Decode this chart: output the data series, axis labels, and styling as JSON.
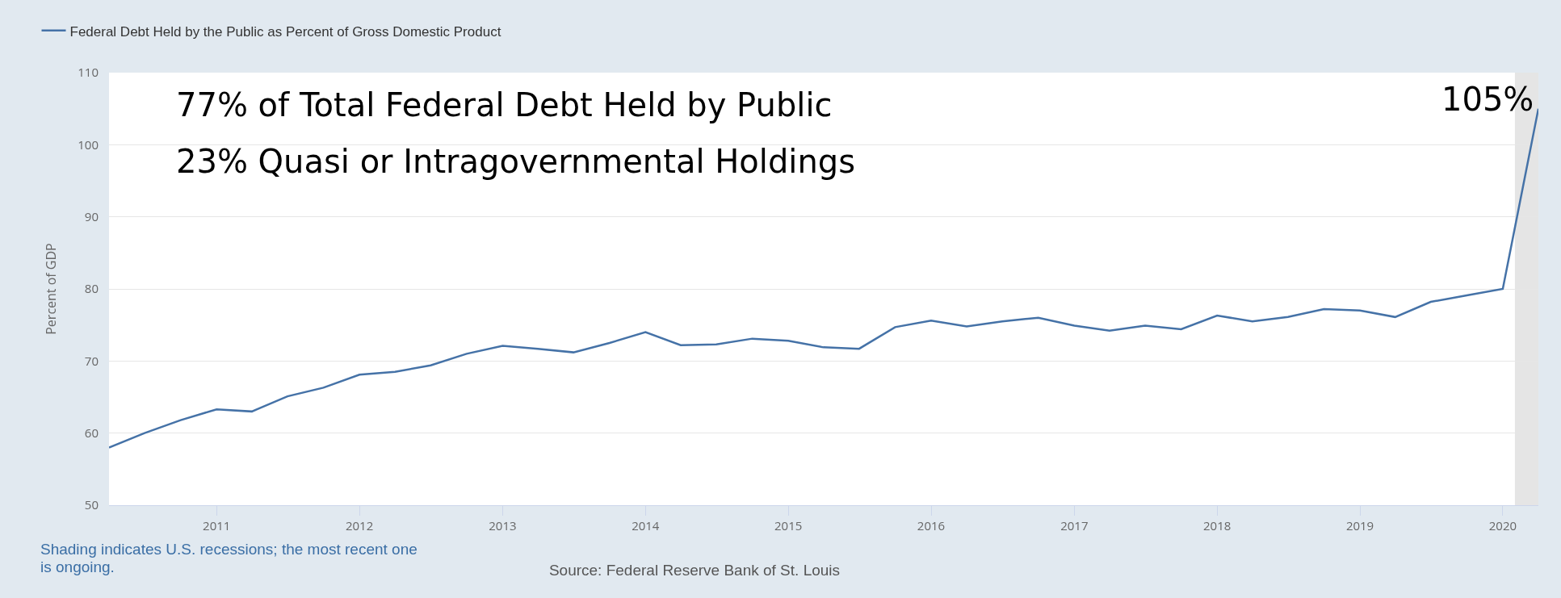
{
  "chart_data": {
    "type": "line",
    "ylabel": "Percent of GDP",
    "x": [
      "2010-04",
      "2010-07",
      "2010-10",
      "2011-01",
      "2011-04",
      "2011-07",
      "2011-10",
      "2012-01",
      "2012-04",
      "2012-07",
      "2012-10",
      "2013-01",
      "2013-04",
      "2013-07",
      "2013-10",
      "2014-01",
      "2014-04",
      "2014-07",
      "2014-10",
      "2015-01",
      "2015-04",
      "2015-07",
      "2015-10",
      "2016-01",
      "2016-04",
      "2016-07",
      "2016-10",
      "2017-01",
      "2017-04",
      "2017-07",
      "2017-10",
      "2018-01",
      "2018-04",
      "2018-07",
      "2018-10",
      "2019-01",
      "2019-04",
      "2019-07",
      "2019-10",
      "2020-01",
      "2020-04"
    ],
    "series": [
      {
        "name": "Federal Debt Held by the Public as Percent of Gross Domestic Product",
        "color": "#4572a7",
        "values": [
          58.0,
          60.0,
          61.8,
          63.3,
          63.0,
          65.1,
          66.3,
          68.1,
          68.5,
          69.4,
          71.0,
          72.1,
          71.7,
          71.2,
          72.5,
          74.0,
          72.2,
          72.3,
          73.1,
          72.8,
          71.9,
          71.7,
          74.7,
          75.6,
          74.8,
          75.5,
          76.0,
          74.9,
          74.2,
          74.9,
          74.4,
          76.3,
          75.5,
          76.1,
          77.2,
          77.0,
          76.1,
          78.2,
          79.1,
          80.0,
          105
        ]
      }
    ],
    "xlim": [
      "2010-04",
      "2020-04"
    ],
    "xticks": [
      "2011",
      "2012",
      "2013",
      "2014",
      "2015",
      "2016",
      "2017",
      "2018",
      "2019",
      "2020"
    ],
    "ylim": [
      50,
      110
    ],
    "yticks": [
      50,
      60,
      70,
      80,
      90,
      100,
      110
    ],
    "bands": [
      {
        "axis": "x",
        "from": "2020-02",
        "to": "2020-04",
        "color": "#e5e5e5"
      }
    ],
    "annotations": [
      "77% of Total Federal Debt Held by Public",
      "23% Quasi or Intragovernmental Holdings",
      {
        "text": "105%",
        "x": "2020-04",
        "y": 105
      },
      "Shading indicates U.S. recessions; the most recent one is ongoing.",
      "Source: Federal Reserve Bank of St. Louis"
    ],
    "grid": "y",
    "legend": "top left",
    "marker": "none",
    "line_style": "solid"
  }
}
